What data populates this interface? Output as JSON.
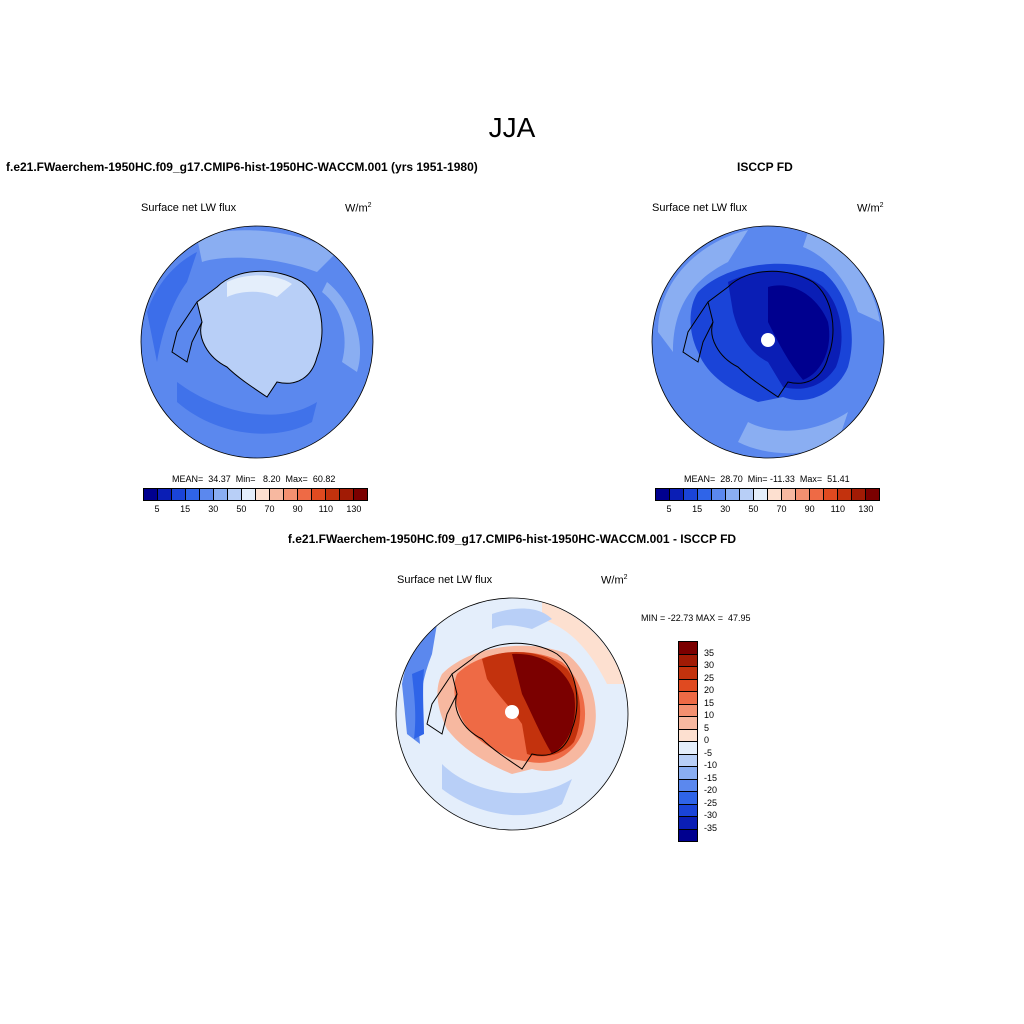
{
  "season": "JJA",
  "panels": {
    "model": {
      "title": "f.e21.FWaerchem-1950HC.f09_g17.CMIP6-hist-1950HC-WACCM.001 (yrs 1951-1980)",
      "variable": "Surface net LW flux",
      "units_base": "W/m",
      "units_exp": "2",
      "stats": "MEAN=  34.37  Min=   8.20  Max=  60.82",
      "colorbar_ticks": [
        "5",
        "15",
        "30",
        "50",
        "70",
        "90",
        "110",
        "130"
      ]
    },
    "obs": {
      "title": "ISCCP FD",
      "variable": "Surface net LW flux",
      "units_base": "W/m",
      "units_exp": "2",
      "stats": "MEAN=  28.70  Min= -11.33  Max=  51.41",
      "colorbar_ticks": [
        "5",
        "15",
        "30",
        "50",
        "70",
        "90",
        "110",
        "130"
      ]
    },
    "diff": {
      "title": "f.e21.FWaerchem-1950HC.f09_g17.CMIP6-hist-1950HC-WACCM.001 - ISCCP FD",
      "variable": "Surface net LW flux",
      "units_base": "W/m",
      "units_exp": "2",
      "minmax": "MIN = -22.73 MAX =  47.95",
      "colorbar_ticks": [
        "35",
        "30",
        "25",
        "20",
        "15",
        "10",
        "5",
        "0",
        "-5",
        "-10",
        "-15",
        "-20",
        "-25",
        "-30",
        "-35"
      ]
    }
  },
  "colors": {
    "abs_scale": [
      "#00008f",
      "#0a1eb5",
      "#1a44d8",
      "#2f64e8",
      "#5b88ee",
      "#8aaef2",
      "#b8cff7",
      "#e4eefb",
      "#fde0d0",
      "#f7b8a0",
      "#f39070",
      "#ee6a45",
      "#e04a20",
      "#c3320d",
      "#a11b05",
      "#7b0000"
    ],
    "diff_scale": [
      "#7b0000",
      "#a11b05",
      "#c3320d",
      "#e04a20",
      "#ee6a45",
      "#f39070",
      "#f7b8a0",
      "#fde0d0",
      "#e4eefb",
      "#b8cff7",
      "#8aaef2",
      "#5b88ee",
      "#2f64e8",
      "#1a44d8",
      "#0a1eb5",
      "#00008f"
    ]
  }
}
